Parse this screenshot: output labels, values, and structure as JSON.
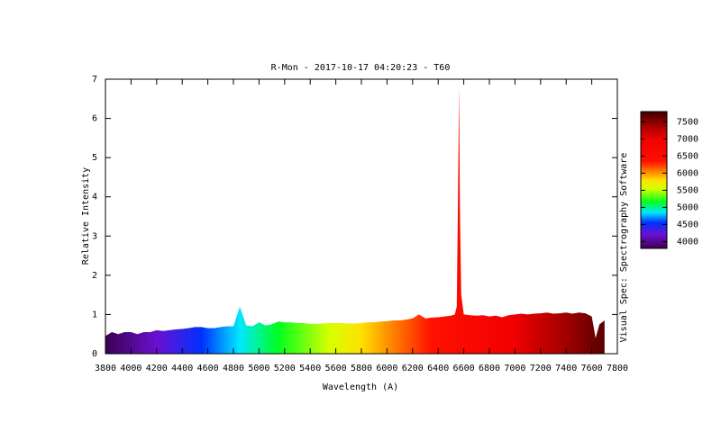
{
  "chart_data": {
    "type": "area",
    "title": "R-Mon - 2017-10-17 04:20:23 - T60",
    "xlabel": "Wavelength (A)",
    "ylabel": "Relative Intensity",
    "side_label": "Visual Spec: Spectrography Software",
    "x": [
      3800,
      3850,
      3900,
      3950,
      4000,
      4050,
      4100,
      4150,
      4200,
      4250,
      4300,
      4350,
      4400,
      4450,
      4500,
      4550,
      4600,
      4650,
      4700,
      4750,
      4800,
      4850,
      4900,
      4950,
      5000,
      5050,
      5100,
      5150,
      5200,
      5250,
      5300,
      5350,
      5400,
      5450,
      5500,
      5550,
      5600,
      5650,
      5700,
      5750,
      5800,
      5850,
      5900,
      5950,
      6000,
      6050,
      6100,
      6150,
      6200,
      6250,
      6300,
      6350,
      6400,
      6450,
      6500,
      6530,
      6545,
      6555,
      6563,
      6570,
      6580,
      6600,
      6650,
      6700,
      6750,
      6800,
      6850,
      6900,
      6950,
      7000,
      7050,
      7100,
      7150,
      7200,
      7250,
      7300,
      7350,
      7400,
      7450,
      7500,
      7550,
      7600,
      7630,
      7660,
      7700
    ],
    "values": [
      0.45,
      0.55,
      0.5,
      0.55,
      0.55,
      0.5,
      0.55,
      0.55,
      0.6,
      0.58,
      0.6,
      0.62,
      0.63,
      0.65,
      0.68,
      0.68,
      0.65,
      0.65,
      0.68,
      0.7,
      0.7,
      1.2,
      0.72,
      0.7,
      0.8,
      0.72,
      0.75,
      0.82,
      0.8,
      0.8,
      0.78,
      0.78,
      0.76,
      0.76,
      0.77,
      0.78,
      0.78,
      0.78,
      0.77,
      0.77,
      0.78,
      0.8,
      0.8,
      0.82,
      0.83,
      0.85,
      0.85,
      0.87,
      0.9,
      1.0,
      0.9,
      0.92,
      0.93,
      0.95,
      0.97,
      1.0,
      1.2,
      4.0,
      6.8,
      3.6,
      1.5,
      1.0,
      0.98,
      0.97,
      0.98,
      0.95,
      0.97,
      0.93,
      0.98,
      1.0,
      1.02,
      1.0,
      1.02,
      1.03,
      1.05,
      1.02,
      1.03,
      1.05,
      1.02,
      1.05,
      1.03,
      0.95,
      0.4,
      0.75,
      0.85
    ],
    "xlim": [
      3800,
      7800
    ],
    "xticks": [
      3800,
      4000,
      4200,
      4400,
      4600,
      4800,
      5000,
      5200,
      5400,
      5600,
      5800,
      6000,
      6200,
      6400,
      6600,
      6800,
      7000,
      7200,
      7400,
      7600,
      7800
    ],
    "ylim": [
      0,
      7
    ],
    "yticks": [
      0,
      1,
      2,
      3,
      4,
      5,
      6,
      7
    ],
    "colormap": [
      [
        3800,
        "#3c0050"
      ],
      [
        4200,
        "#6a10d0"
      ],
      [
        4550,
        "#0030ff"
      ],
      [
        4850,
        "#00e8ff"
      ],
      [
        5150,
        "#00ff20"
      ],
      [
        5550,
        "#d8ff00"
      ],
      [
        5800,
        "#ffe000"
      ],
      [
        6050,
        "#ff8000"
      ],
      [
        6350,
        "#ff1000"
      ],
      [
        7000,
        "#f00000"
      ],
      [
        7400,
        "#a00000"
      ],
      [
        7800,
        "#400000"
      ]
    ],
    "colorbar": {
      "lim": [
        3800,
        7800
      ],
      "ticks": [
        4000,
        4500,
        5000,
        5500,
        6000,
        6500,
        7000,
        7500
      ]
    }
  }
}
